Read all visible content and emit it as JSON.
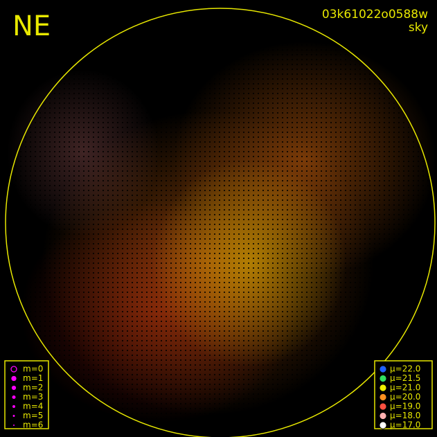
{
  "header": {
    "label": "NE",
    "id": "03k61022o0588w",
    "mode": "sky"
  },
  "magnitude_legend": [
    {
      "label": "m=0"
    },
    {
      "label": "m=1"
    },
    {
      "label": "m=2"
    },
    {
      "label": "m=3"
    },
    {
      "label": "m=4"
    },
    {
      "label": "m=5"
    },
    {
      "label": "m=6"
    }
  ],
  "brightness_legend": [
    {
      "label": "μ=22.0",
      "color": "#2060ff"
    },
    {
      "label": "μ=21.5",
      "color": "#30e060"
    },
    {
      "label": "μ=21.0",
      "color": "#f0f000"
    },
    {
      "label": "μ=20.0",
      "color": "#ff9020"
    },
    {
      "label": "μ=19.0",
      "color": "#ff5040"
    },
    {
      "label": "μ=18.0",
      "color": "#ffb0b0"
    },
    {
      "label": "μ=17.0",
      "color": "#ffffff"
    }
  ]
}
